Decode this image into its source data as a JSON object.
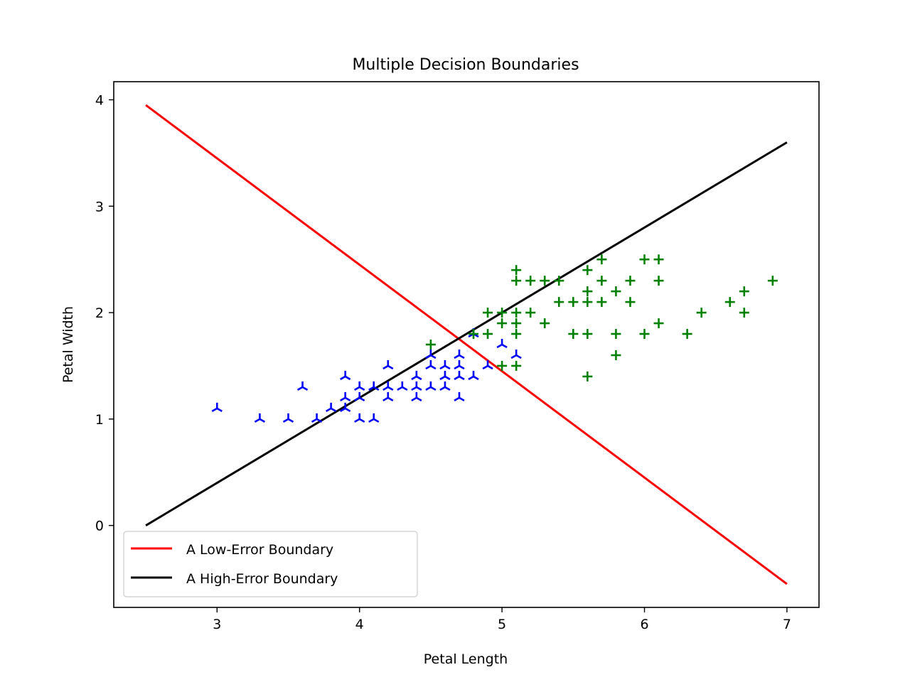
{
  "chart_data": {
    "type": "scatter",
    "title": "Multiple Decision Boundaries",
    "xlabel": "Petal Length",
    "ylabel": "Petal Width",
    "xlim": [
      2.275,
      7.225
    ],
    "ylim": [
      -0.77,
      4.17
    ],
    "xticks": [
      3,
      4,
      5,
      6,
      7
    ],
    "yticks": [
      0,
      1,
      2,
      3,
      4
    ],
    "grid": false,
    "legend_position": "lower-left",
    "series": [
      {
        "kind": "scatter",
        "marker": "tri-down",
        "color": "#0000ff",
        "points": [
          [
            3.0,
            1.1
          ],
          [
            3.3,
            1.0
          ],
          [
            3.5,
            1.0
          ],
          [
            3.6,
            1.3
          ],
          [
            3.7,
            1.0
          ],
          [
            3.8,
            1.1
          ],
          [
            3.9,
            1.1
          ],
          [
            3.9,
            1.2
          ],
          [
            3.9,
            1.4
          ],
          [
            4.0,
            1.0
          ],
          [
            4.0,
            1.2
          ],
          [
            4.0,
            1.3
          ],
          [
            4.1,
            1.0
          ],
          [
            4.1,
            1.3
          ],
          [
            4.2,
            1.2
          ],
          [
            4.2,
            1.3
          ],
          [
            4.2,
            1.5
          ],
          [
            4.3,
            1.3
          ],
          [
            4.4,
            1.2
          ],
          [
            4.4,
            1.3
          ],
          [
            4.4,
            1.4
          ],
          [
            4.5,
            1.3
          ],
          [
            4.5,
            1.5
          ],
          [
            4.5,
            1.6
          ],
          [
            4.6,
            1.3
          ],
          [
            4.6,
            1.4
          ],
          [
            4.6,
            1.5
          ],
          [
            4.7,
            1.2
          ],
          [
            4.7,
            1.4
          ],
          [
            4.7,
            1.5
          ],
          [
            4.7,
            1.6
          ],
          [
            4.8,
            1.4
          ],
          [
            4.8,
            1.8
          ],
          [
            4.9,
            1.5
          ],
          [
            5.0,
            1.7
          ],
          [
            5.1,
            1.6
          ]
        ]
      },
      {
        "kind": "scatter",
        "marker": "plus",
        "color": "#008000",
        "points": [
          [
            4.5,
            1.7
          ],
          [
            4.8,
            1.8
          ],
          [
            4.9,
            1.8
          ],
          [
            4.9,
            2.0
          ],
          [
            5.0,
            1.5
          ],
          [
            5.0,
            1.9
          ],
          [
            5.0,
            2.0
          ],
          [
            5.1,
            1.5
          ],
          [
            5.1,
            1.8
          ],
          [
            5.1,
            1.9
          ],
          [
            5.1,
            2.0
          ],
          [
            5.1,
            2.3
          ],
          [
            5.1,
            2.4
          ],
          [
            5.2,
            2.0
          ],
          [
            5.2,
            2.3
          ],
          [
            5.3,
            1.9
          ],
          [
            5.3,
            2.3
          ],
          [
            5.4,
            2.1
          ],
          [
            5.4,
            2.3
          ],
          [
            5.5,
            1.8
          ],
          [
            5.5,
            2.1
          ],
          [
            5.6,
            1.4
          ],
          [
            5.6,
            1.8
          ],
          [
            5.6,
            2.1
          ],
          [
            5.6,
            2.2
          ],
          [
            5.6,
            2.4
          ],
          [
            5.7,
            2.1
          ],
          [
            5.7,
            2.3
          ],
          [
            5.7,
            2.5
          ],
          [
            5.8,
            1.6
          ],
          [
            5.8,
            1.8
          ],
          [
            5.8,
            2.2
          ],
          [
            5.9,
            2.1
          ],
          [
            5.9,
            2.3
          ],
          [
            6.0,
            1.8
          ],
          [
            6.0,
            2.5
          ],
          [
            6.1,
            1.9
          ],
          [
            6.1,
            2.3
          ],
          [
            6.1,
            2.5
          ],
          [
            6.3,
            1.8
          ],
          [
            6.4,
            2.0
          ],
          [
            6.6,
            2.1
          ],
          [
            6.7,
            2.0
          ],
          [
            6.7,
            2.2
          ],
          [
            6.9,
            2.3
          ]
        ]
      },
      {
        "kind": "line",
        "name": "A Low-Error Boundary",
        "color": "#ff0000",
        "x": [
          2.5,
          7.0
        ],
        "y": [
          3.95,
          -0.55
        ]
      },
      {
        "kind": "line",
        "name": "A High-Error Boundary",
        "color": "#000000",
        "x": [
          2.5,
          7.0
        ],
        "y": [
          0.0,
          3.6
        ]
      }
    ]
  }
}
